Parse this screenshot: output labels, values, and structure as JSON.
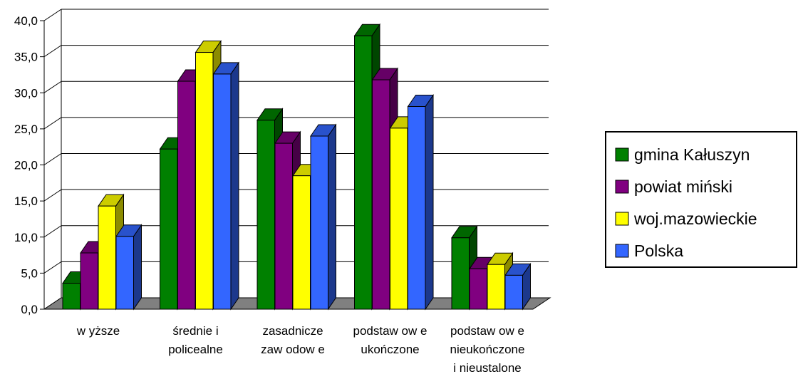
{
  "chart_data": {
    "type": "bar",
    "categories": [
      [
        "w yższe"
      ],
      [
        "średnie i",
        "policealne"
      ],
      [
        "zasadnicze",
        "zaw odow e"
      ],
      [
        "podstaw ow e",
        "ukończone"
      ],
      [
        "podstaw ow e",
        "nieukończone",
        "i nieustalone"
      ]
    ],
    "series": [
      {
        "name": "gmina Kałuszyn",
        "color": "#008000",
        "values": [
          3.6,
          22.2,
          26.2,
          37.9,
          9.9
        ]
      },
      {
        "name": "powiat miński",
        "color": "#800080",
        "values": [
          7.8,
          31.6,
          23.0,
          31.8,
          5.6
        ]
      },
      {
        "name": "woj.mazowieckie",
        "color": "#ffff00",
        "values": [
          14.3,
          35.6,
          18.5,
          25.1,
          6.2
        ]
      },
      {
        "name": "Polska",
        "color": "#3366ff",
        "values": [
          10.1,
          32.6,
          24.0,
          28.1,
          4.7
        ]
      }
    ],
    "ylim": [
      0,
      40
    ],
    "yticks": [
      "0,0",
      "5,0",
      "10,0",
      "15,0",
      "20,0",
      "25,0",
      "30,0",
      "35,0",
      "40,0"
    ],
    "grid": true,
    "legend_position": "right",
    "floor_color": "#808080"
  }
}
